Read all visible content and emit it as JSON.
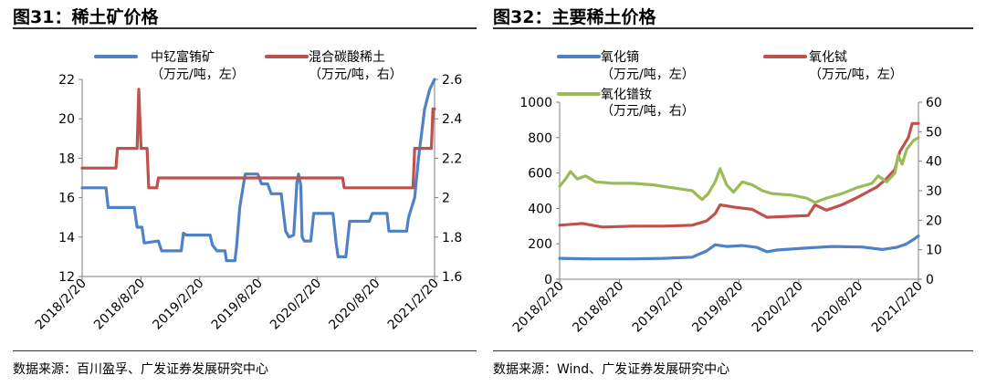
{
  "left_panel": {
    "title": "图31：稀土矿价格",
    "source": "数据来源：百川盈孚、广发证券发展研究中心"
  },
  "right_panel": {
    "title": "图32：主要稀土价格",
    "source": "数据来源：Wind、广发证券发展研究中心"
  },
  "colors": {
    "blue": "#4F81C7",
    "red": "#C0504D",
    "green": "#9BBB59",
    "axis": "#7f7f7f"
  },
  "chart_data": [
    {
      "type": "line",
      "title": "",
      "x_ticks": [
        "2018/2/20",
        "2018/8/20",
        "2019/2/20",
        "2019/8/20",
        "2020/2/20",
        "2020/8/20",
        "2021/2/20"
      ],
      "x_range": [
        "2018-02-20",
        "2021-02-20"
      ],
      "y_left": {
        "ylim": [
          12,
          22
        ],
        "ticks": [
          "12",
          "14",
          "16",
          "18",
          "20",
          "22"
        ]
      },
      "y_right": {
        "ylim": [
          1.6,
          2.6
        ],
        "ticks": [
          "1.6",
          "1.8",
          "2",
          "2.2",
          "2.4",
          "2.6"
        ]
      },
      "grid": false,
      "legend_position": "top",
      "series": [
        {
          "name": "中钇富铕矿",
          "unit": "（万元/吨，左）",
          "axis": "left",
          "color": "blue",
          "points": [
            [
              "2018-02-20",
              16.5
            ],
            [
              "2018-05-05",
              16.5
            ],
            [
              "2018-05-12",
              15.5
            ],
            [
              "2018-08-01",
              15.5
            ],
            [
              "2018-08-10",
              14.5
            ],
            [
              "2018-08-25",
              14.5
            ],
            [
              "2018-09-01",
              13.7
            ],
            [
              "2018-10-15",
              13.8
            ],
            [
              "2018-10-25",
              13.3
            ],
            [
              "2018-12-25",
              13.3
            ],
            [
              "2019-01-01",
              14.2
            ],
            [
              "2019-01-10",
              14.1
            ],
            [
              "2019-03-25",
              14.1
            ],
            [
              "2019-04-01",
              13.6
            ],
            [
              "2019-04-15",
              13.3
            ],
            [
              "2019-05-10",
              13.3
            ],
            [
              "2019-05-15",
              12.8
            ],
            [
              "2019-06-10",
              12.8
            ],
            [
              "2019-06-15",
              13.5
            ],
            [
              "2019-06-25",
              15.5
            ],
            [
              "2019-07-05",
              16.5
            ],
            [
              "2019-07-12",
              17.2
            ],
            [
              "2019-08-20",
              17.2
            ],
            [
              "2019-09-01",
              16.7
            ],
            [
              "2019-09-20",
              16.7
            ],
            [
              "2019-10-01",
              16.2
            ],
            [
              "2019-11-01",
              16.2
            ],
            [
              "2019-11-15",
              14.3
            ],
            [
              "2019-11-25",
              14.0
            ],
            [
              "2019-12-10",
              14.1
            ],
            [
              "2019-12-20",
              16.8
            ],
            [
              "2019-12-25",
              17.2
            ],
            [
              "2020-01-01",
              16.6
            ],
            [
              "2020-01-05",
              14.0
            ],
            [
              "2020-01-12",
              13.8
            ],
            [
              "2020-02-01",
              13.8
            ],
            [
              "2020-02-10",
              15.2
            ],
            [
              "2020-04-10",
              15.2
            ],
            [
              "2020-04-20",
              13.7
            ],
            [
              "2020-04-26",
              13.0
            ],
            [
              "2020-05-20",
              13.0
            ],
            [
              "2020-06-01",
              14.8
            ],
            [
              "2020-08-01",
              14.8
            ],
            [
              "2020-08-10",
              15.2
            ],
            [
              "2020-09-25",
              15.2
            ],
            [
              "2020-10-01",
              14.3
            ],
            [
              "2020-11-25",
              14.3
            ],
            [
              "2020-12-01",
              15.0
            ],
            [
              "2020-12-20",
              16.0
            ],
            [
              "2021-01-01",
              18.0
            ],
            [
              "2021-01-20",
              20.5
            ],
            [
              "2021-02-05",
              21.5
            ],
            [
              "2021-02-20",
              22.0
            ]
          ]
        },
        {
          "name": "混合碳酸稀土",
          "unit": "（万元/吨，右）",
          "axis": "right",
          "color": "red",
          "points": [
            [
              "2018-02-20",
              2.15
            ],
            [
              "2018-06-05",
              2.15
            ],
            [
              "2018-06-10",
              2.25
            ],
            [
              "2018-08-10",
              2.25
            ],
            [
              "2018-08-15",
              2.55
            ],
            [
              "2018-08-22",
              2.25
            ],
            [
              "2018-09-10",
              2.25
            ],
            [
              "2018-09-15",
              2.05
            ],
            [
              "2018-10-10",
              2.05
            ],
            [
              "2018-10-15",
              2.1
            ],
            [
              "2020-05-10",
              2.1
            ],
            [
              "2020-05-15",
              2.05
            ],
            [
              "2020-12-15",
              2.05
            ],
            [
              "2020-12-20",
              2.25
            ],
            [
              "2021-02-10",
              2.25
            ],
            [
              "2021-02-15",
              2.45
            ],
            [
              "2021-02-20",
              2.45
            ]
          ]
        }
      ]
    },
    {
      "type": "line",
      "title": "",
      "x_ticks": [
        "2018/2/20",
        "2018/8/20",
        "2019/2/20",
        "2019/8/20",
        "2020/2/20",
        "2020/8/20",
        "2021/2/20"
      ],
      "x_range": [
        "2018-02-20",
        "2021-02-20"
      ],
      "y_left": {
        "ylim": [
          0,
          1000
        ],
        "ticks": [
          "0",
          "200",
          "400",
          "600",
          "800",
          "1000"
        ]
      },
      "y_right": {
        "ylim": [
          0,
          60
        ],
        "ticks": [
          "0",
          "10",
          "20",
          "30",
          "40",
          "50",
          "60"
        ]
      },
      "grid": false,
      "legend_position": "top",
      "series": [
        {
          "name": "氧化镝",
          "unit": "（万元/吨，左）",
          "axis": "left",
          "color": "blue",
          "points": [
            [
              "2018-02-20",
              118
            ],
            [
              "2018-06-01",
              115
            ],
            [
              "2018-10-01",
              115
            ],
            [
              "2019-01-01",
              118
            ],
            [
              "2019-04-01",
              125
            ],
            [
              "2019-05-15",
              160
            ],
            [
              "2019-06-10",
              195
            ],
            [
              "2019-07-15",
              185
            ],
            [
              "2019-09-01",
              190
            ],
            [
              "2019-10-15",
              180
            ],
            [
              "2019-11-15",
              155
            ],
            [
              "2019-12-15",
              165
            ],
            [
              "2020-03-01",
              175
            ],
            [
              "2020-06-01",
              185
            ],
            [
              "2020-09-01",
              182
            ],
            [
              "2020-11-01",
              168
            ],
            [
              "2020-12-15",
              180
            ],
            [
              "2021-01-15",
              200
            ],
            [
              "2021-02-05",
              225
            ],
            [
              "2021-02-20",
              245
            ]
          ]
        },
        {
          "name": "氧化铽",
          "unit": "（万元/吨，左）",
          "axis": "left",
          "color": "red",
          "points": [
            [
              "2018-02-20",
              305
            ],
            [
              "2018-05-01",
              315
            ],
            [
              "2018-07-01",
              295
            ],
            [
              "2018-10-01",
              300
            ],
            [
              "2019-01-01",
              300
            ],
            [
              "2019-04-01",
              305
            ],
            [
              "2019-05-15",
              330
            ],
            [
              "2019-06-10",
              370
            ],
            [
              "2019-06-25",
              420
            ],
            [
              "2019-08-15",
              405
            ],
            [
              "2019-10-01",
              395
            ],
            [
              "2019-11-15",
              350
            ],
            [
              "2020-01-15",
              355
            ],
            [
              "2020-03-20",
              360
            ],
            [
              "2020-04-10",
              420
            ],
            [
              "2020-05-15",
              390
            ],
            [
              "2020-07-01",
              420
            ],
            [
              "2020-08-15",
              460
            ],
            [
              "2020-10-15",
              520
            ],
            [
              "2020-11-10",
              560
            ],
            [
              "2020-12-10",
              620
            ],
            [
              "2020-12-25",
              720
            ],
            [
              "2021-01-20",
              800
            ],
            [
              "2021-02-01",
              880
            ],
            [
              "2021-02-20",
              880
            ]
          ]
        },
        {
          "name": "氧化镨钕",
          "unit": "（万元/吨，右）",
          "axis": "right",
          "color": "green",
          "points": [
            [
              "2018-02-20",
              31.5
            ],
            [
              "2018-03-10",
              34
            ],
            [
              "2018-03-25",
              36.5
            ],
            [
              "2018-04-15",
              34
            ],
            [
              "2018-05-10",
              35
            ],
            [
              "2018-06-10",
              33
            ],
            [
              "2018-08-01",
              32.5
            ],
            [
              "2018-10-01",
              32.5
            ],
            [
              "2018-12-01",
              32
            ],
            [
              "2019-02-01",
              31
            ],
            [
              "2019-04-01",
              30
            ],
            [
              "2019-05-01",
              27
            ],
            [
              "2019-05-20",
              29
            ],
            [
              "2019-06-10",
              33
            ],
            [
              "2019-06-25",
              37.5
            ],
            [
              "2019-07-15",
              32
            ],
            [
              "2019-08-05",
              29.5
            ],
            [
              "2019-09-01",
              33
            ],
            [
              "2019-10-01",
              32
            ],
            [
              "2019-11-01",
              30
            ],
            [
              "2019-12-01",
              29
            ],
            [
              "2020-02-01",
              28.5
            ],
            [
              "2020-03-15",
              27.5
            ],
            [
              "2020-04-10",
              26
            ],
            [
              "2020-05-15",
              27.5
            ],
            [
              "2020-07-01",
              29
            ],
            [
              "2020-08-15",
              31
            ],
            [
              "2020-10-01",
              32.5
            ],
            [
              "2020-10-20",
              35
            ],
            [
              "2020-11-15",
              33
            ],
            [
              "2020-12-10",
              36
            ],
            [
              "2020-12-20",
              42
            ],
            [
              "2021-01-01",
              39
            ],
            [
              "2021-01-15",
              44
            ],
            [
              "2021-02-05",
              47
            ],
            [
              "2021-02-20",
              48
            ]
          ]
        }
      ]
    }
  ]
}
